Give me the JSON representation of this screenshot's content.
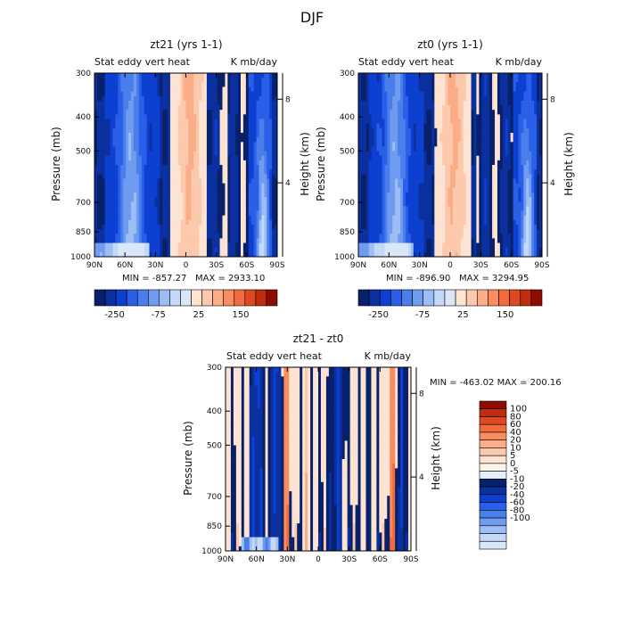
{
  "figure": {
    "title": "DJF"
  },
  "colors": {
    "blue": [
      "#08216b",
      "#0b30a0",
      "#0d40d0",
      "#2a5fe8",
      "#4a7eea",
      "#6f9bf0",
      "#9dbdf5",
      "#c4d8f7",
      "#d9e7f9"
    ],
    "red": [
      "#fde3d2",
      "#fcc9ac",
      "#fbad87",
      "#f98d5f",
      "#f26b3c",
      "#dd4a22",
      "#bf2c10",
      "#8e0d02"
    ]
  },
  "chart_data": [
    {
      "type": "heatmap",
      "title": "zt21 (yrs 1-1)",
      "subtitle_left": "Stat eddy vert heat",
      "subtitle_right": "K mb/day",
      "ylabel": "Pressure (mb)",
      "y2label": "Height (km)",
      "x_ticks": [
        "90N",
        "60N",
        "30N",
        "0",
        "30S",
        "60S",
        "90S"
      ],
      "y_ticks": [
        "300",
        "400",
        "500",
        "700",
        "850",
        "1000"
      ],
      "y_tick_values": [
        300,
        400,
        500,
        700,
        850,
        1000
      ],
      "y2_ticks": [
        "8",
        "4"
      ],
      "ylim": [
        1000,
        300
      ],
      "y_scale": "log",
      "min_label": "MIN = -857.27",
      "max_label": "MAX = 2933.10",
      "min": -857.27,
      "max": 2933.1,
      "colorbar": {
        "orientation": "horizontal",
        "tick_labels": [
          "-250",
          "-75",
          "25",
          "150"
        ]
      }
    },
    {
      "type": "heatmap",
      "title": "zt0 (yrs 1-1)",
      "subtitle_left": "Stat eddy vert heat",
      "subtitle_right": "K mb/day",
      "ylabel": "Pressure (mb)",
      "y2label": "Height (km)",
      "x_ticks": [
        "90N",
        "60N",
        "30N",
        "0",
        "30S",
        "60S",
        "90S"
      ],
      "y_ticks": [
        "300",
        "400",
        "500",
        "700",
        "850",
        "1000"
      ],
      "y_tick_values": [
        300,
        400,
        500,
        700,
        850,
        1000
      ],
      "y2_ticks": [
        "8",
        "4"
      ],
      "ylim": [
        1000,
        300
      ],
      "y_scale": "log",
      "min_label": "MIN = -896.90",
      "max_label": "MAX = 3294.95",
      "min": -896.9,
      "max": 3294.95,
      "colorbar": {
        "orientation": "horizontal",
        "tick_labels": [
          "-250",
          "-75",
          "25",
          "150"
        ]
      }
    },
    {
      "type": "heatmap",
      "title": "zt21 - zt0",
      "subtitle_left": "Stat eddy vert heat",
      "subtitle_right": "K mb/day",
      "ylabel": "Pressure (mb)",
      "y2label": "Height (km)",
      "x_ticks": [
        "90N",
        "60N",
        "30N",
        "0",
        "30S",
        "60S",
        "90S"
      ],
      "y_ticks": [
        "300",
        "400",
        "500",
        "700",
        "850",
        "1000"
      ],
      "y_tick_values": [
        300,
        400,
        500,
        700,
        850,
        1000
      ],
      "y2_ticks": [
        "8",
        "4"
      ],
      "ylim": [
        1000,
        300
      ],
      "y_scale": "log",
      "minmax_label": "MIN = -463.02   MAX = 200.16",
      "min": -463.02,
      "max": 200.16,
      "colorbar": {
        "orientation": "vertical",
        "tick_labels": [
          "100",
          "80",
          "60",
          "40",
          "20",
          "10",
          "5",
          "0",
          "-5",
          "-10",
          "-20",
          "-40",
          "-60",
          "-80",
          "-100"
        ]
      }
    }
  ]
}
